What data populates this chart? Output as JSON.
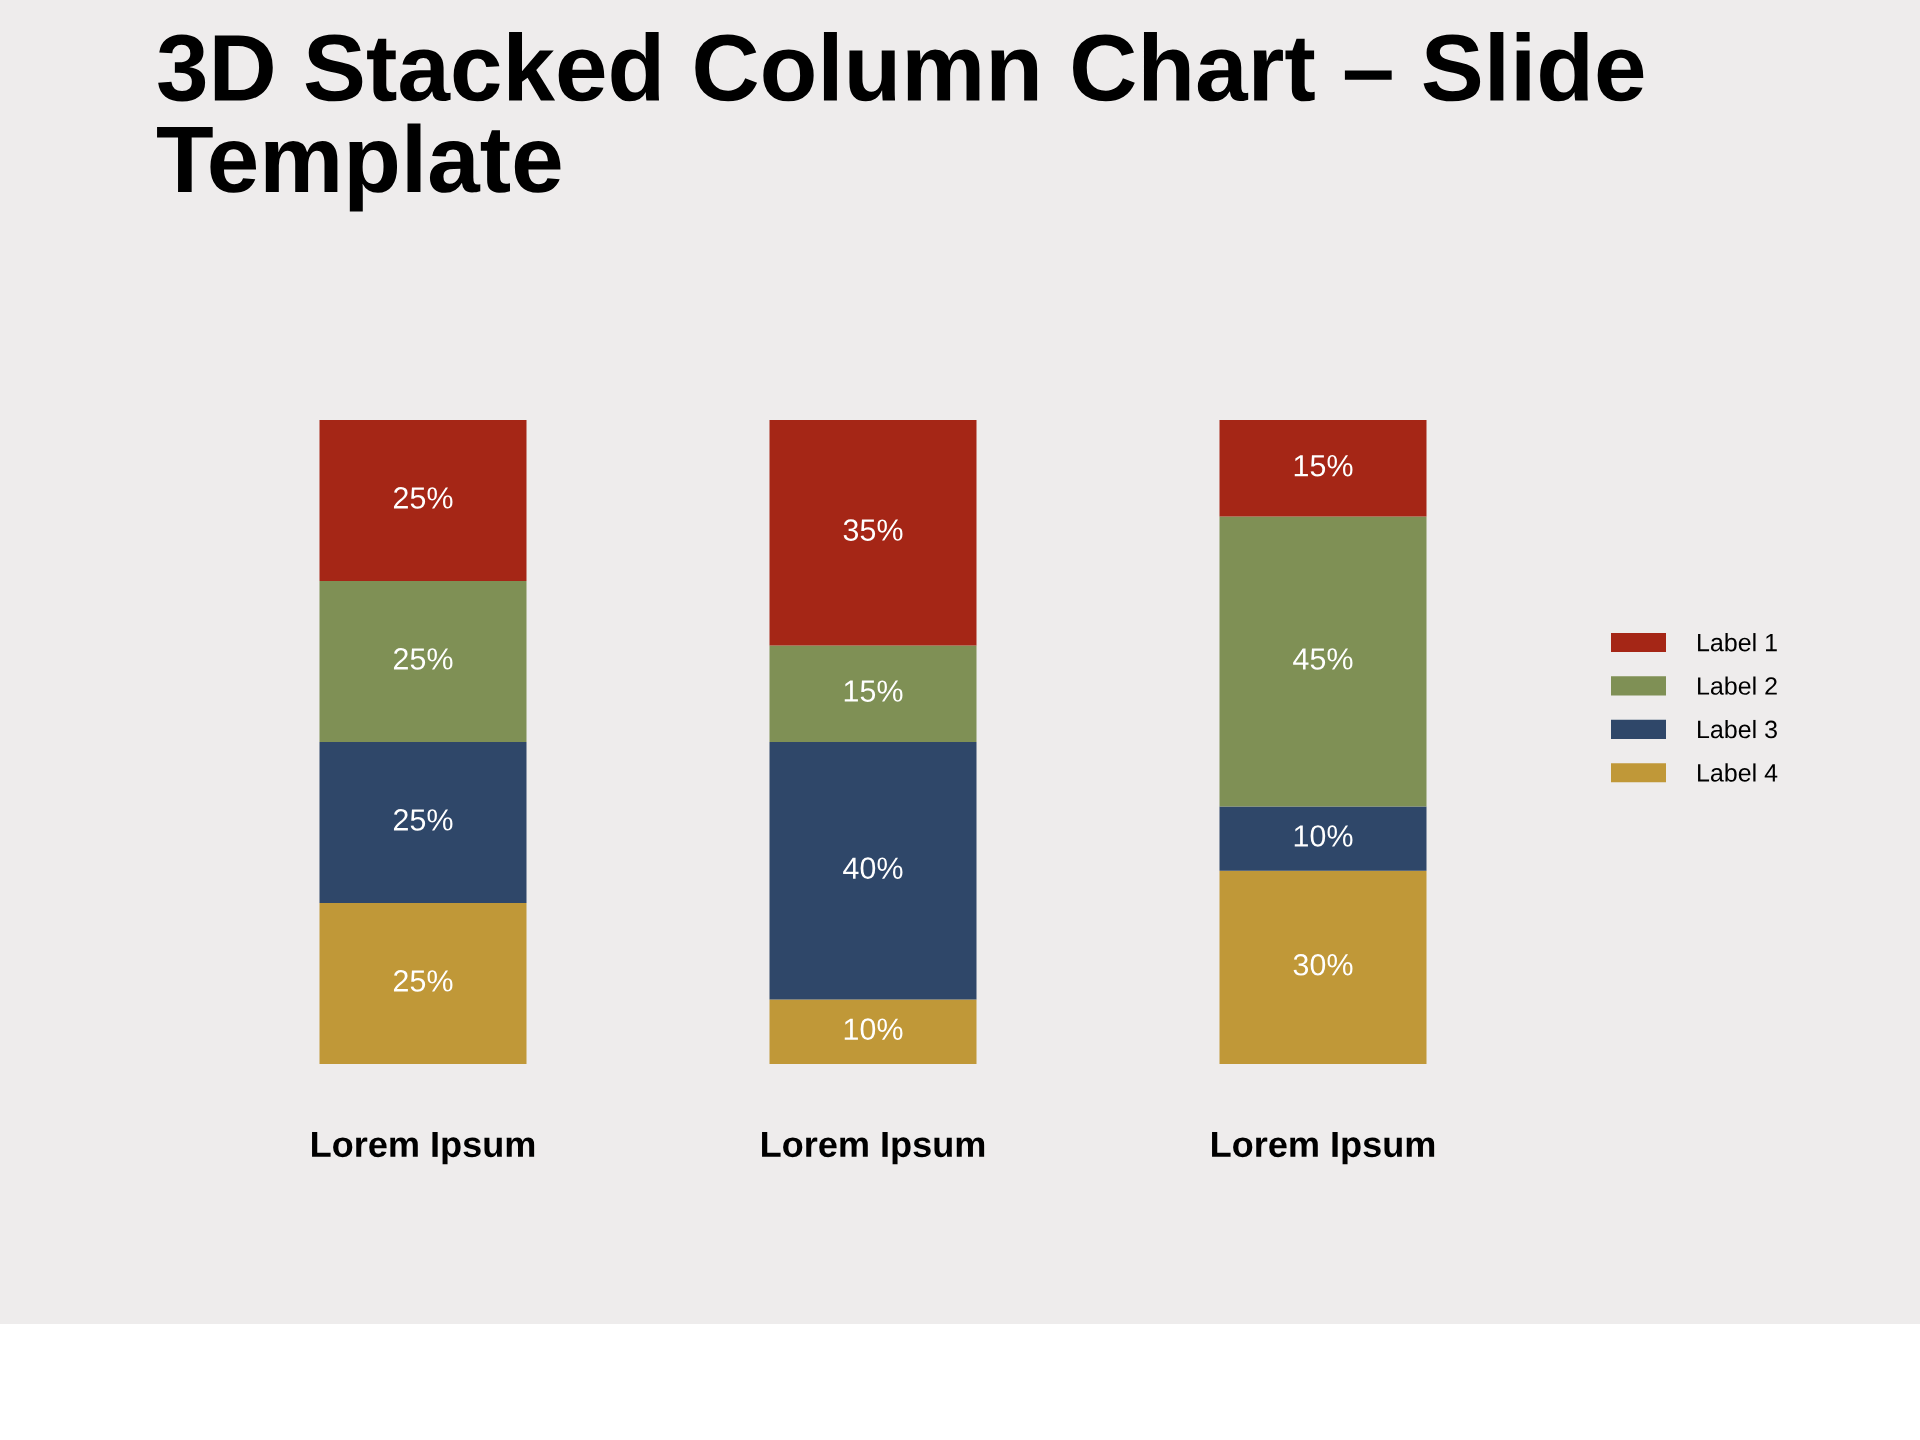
{
  "chart_data": {
    "type": "bar",
    "title": "3D Stacked Column Chart – Slide Template",
    "categories": [
      "Lorem Ipsum",
      "Lorem Ipsum",
      "Lorem Ipsum"
    ],
    "stacked": true,
    "legend": "right",
    "series": [
      {
        "name": "Label 4",
        "color": "#c09838",
        "values": [
          25,
          10,
          30
        ],
        "value_labels": [
          "25%",
          "10%",
          "30%"
        ]
      },
      {
        "name": "Label 3",
        "color": "#2f4769",
        "values": [
          25,
          40,
          10
        ],
        "value_labels": [
          "25%",
          "40%",
          "10%"
        ]
      },
      {
        "name": "Label 2",
        "color": "#7f9055",
        "values": [
          25,
          15,
          45
        ],
        "value_labels": [
          "25%",
          "15%",
          "45%"
        ]
      },
      {
        "name": "Label 1",
        "color": "#a52616",
        "values": [
          25,
          35,
          15
        ],
        "value_labels": [
          "25%",
          "35%",
          "15%"
        ]
      }
    ]
  }
}
